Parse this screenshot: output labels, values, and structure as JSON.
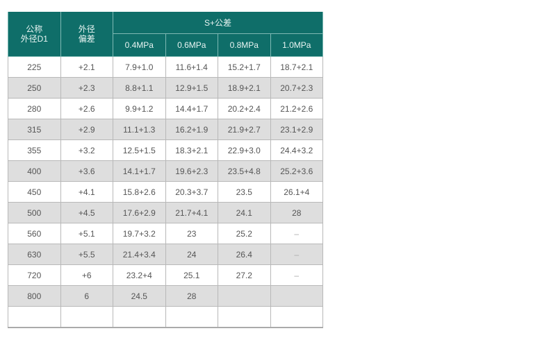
{
  "header": {
    "col1_line1": "公称",
    "col1_line2": "外径D1",
    "col2_line1": "外径",
    "col2_line2": "偏差",
    "group": "S+公差",
    "pressures": [
      "0.4MPa",
      "0.6MPa",
      "0.8MPa",
      "1.0MPa"
    ]
  },
  "header_color": "#0f6e69",
  "rows": [
    [
      "225",
      "+2.1",
      "7.9+1.0",
      "11.6+1.4",
      "15.2+1.7",
      "18.7+2.1"
    ],
    [
      "250",
      "+2.3",
      "8.8+1.1",
      "12.9+1.5",
      "18.9+2.1",
      "20.7+2.3"
    ],
    [
      "280",
      "+2.6",
      "9.9+1.2",
      "14.4+1.7",
      "20.2+2.4",
      "21.2+2.6"
    ],
    [
      "315",
      "+2.9",
      "11.1+1.3",
      "16.2+1.9",
      "21.9+2.7",
      "23.1+2.9"
    ],
    [
      "355",
      "+3.2",
      "12.5+1.5",
      "18.3+2.1",
      "22.9+3.0",
      "24.4+3.2"
    ],
    [
      "400",
      "+3.6",
      "14.1+1.7",
      "19.6+2.3",
      "23.5+4.8",
      "25.2+3.6"
    ],
    [
      "450",
      "+4.1",
      "15.8+2.6",
      "20.3+3.7",
      "23.5",
      "26.1+4"
    ],
    [
      "500",
      "+4.5",
      "17.6+2.9",
      "21.7+4.1",
      "24.1",
      "28"
    ],
    [
      "560",
      "+5.1",
      "19.7+3.2",
      "23",
      "25.2",
      "–"
    ],
    [
      "630",
      "+5.5",
      "21.4+3.4",
      "24",
      "26.4",
      "–"
    ],
    [
      "720",
      "+6",
      "23.2+4",
      "25.1",
      "27.2",
      "–"
    ],
    [
      "800",
      "6",
      "24.5",
      "28",
      "",
      ""
    ],
    [
      "",
      "",
      "",
      "",
      "",
      ""
    ]
  ]
}
